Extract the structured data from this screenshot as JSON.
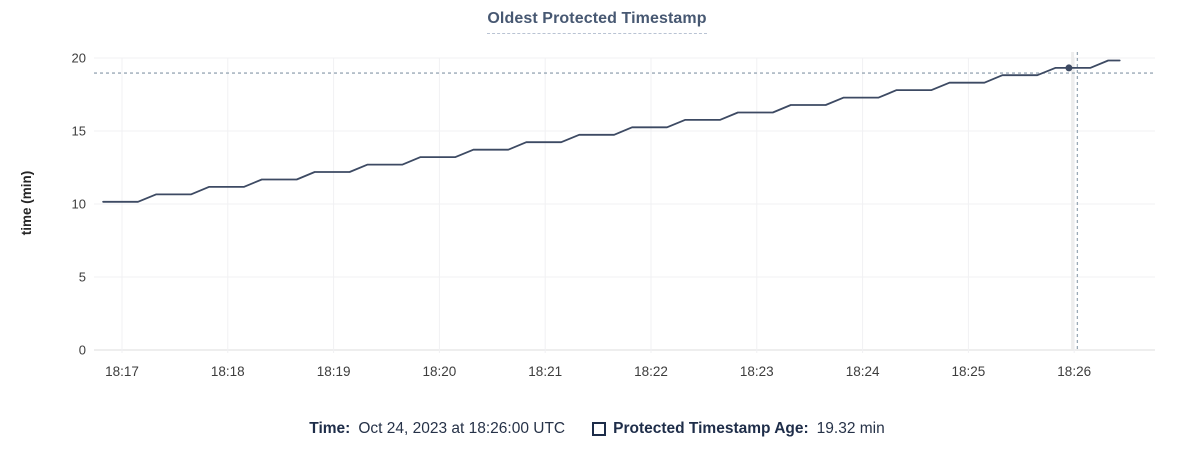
{
  "header": {
    "title": "Oldest Protected Timestamp"
  },
  "chart_data": {
    "type": "line",
    "title": "Oldest Protected Timestamp",
    "xlabel": "",
    "ylabel": "time (min)",
    "ylim": [
      0,
      20
    ],
    "y_ticks": [
      0,
      5,
      10,
      15,
      20
    ],
    "x_tick_labels": [
      "18:17",
      "18:18",
      "18:19",
      "18:20",
      "18:21",
      "18:22",
      "18:23",
      "18:24",
      "18:25",
      "18:26"
    ],
    "x_unit": "minutes offset from 18:17",
    "grid": true,
    "legend_position": "bottom",
    "series": [
      {
        "name": "Protected Timestamp Age",
        "color": "#3d4a63",
        "points": [
          [
            -0.179,
            10.15
          ],
          [
            0.151,
            10.15
          ],
          [
            0.321,
            10.66
          ],
          [
            0.651,
            10.66
          ],
          [
            0.821,
            11.17
          ],
          [
            1.151,
            11.17
          ],
          [
            1.321,
            11.68
          ],
          [
            1.651,
            11.68
          ],
          [
            1.821,
            12.19
          ],
          [
            2.151,
            12.19
          ],
          [
            2.321,
            12.7
          ],
          [
            2.651,
            12.7
          ],
          [
            2.821,
            13.21
          ],
          [
            3.151,
            13.21
          ],
          [
            3.321,
            13.72
          ],
          [
            3.651,
            13.72
          ],
          [
            3.821,
            14.23
          ],
          [
            4.151,
            14.23
          ],
          [
            4.321,
            14.74
          ],
          [
            4.651,
            14.74
          ],
          [
            4.821,
            15.25
          ],
          [
            5.151,
            15.25
          ],
          [
            5.321,
            15.76
          ],
          [
            5.651,
            15.76
          ],
          [
            5.821,
            16.27
          ],
          [
            6.151,
            16.27
          ],
          [
            6.321,
            16.78
          ],
          [
            6.651,
            16.78
          ],
          [
            6.821,
            17.29
          ],
          [
            7.151,
            17.29
          ],
          [
            7.321,
            17.8
          ],
          [
            7.651,
            17.8
          ],
          [
            7.821,
            18.31
          ],
          [
            8.151,
            18.31
          ],
          [
            8.321,
            18.82
          ],
          [
            8.651,
            18.82
          ],
          [
            8.821,
            19.32
          ],
          [
            9.151,
            19.32
          ],
          [
            9.321,
            19.83
          ],
          [
            9.43,
            19.83
          ]
        ]
      }
    ],
    "hover": {
      "dot_t": 8.95,
      "dot_value": 19.32,
      "crosshair_t": 9.03,
      "crosshair_value": 18.97,
      "guideline_t": 8.985,
      "time": "Oct 24, 2023 at 18:26:00 UTC",
      "value": "19.32 min"
    }
  },
  "tooltip": {
    "time_label": "Time:",
    "time_value": "Oct 24, 2023 at 18:26:00 UTC",
    "series_label": "Protected Timestamp Age:",
    "series_value": "19.32 min"
  },
  "colors": {
    "line": "#3d4a63",
    "dot": "#3d4a63",
    "crosshair": "#9aa9b6",
    "hover_guideline": "#ededed",
    "title": "#475872",
    "grid": "#f1f1f3",
    "axis_zero": "#dcdcde",
    "tick_text": "#3d3d3d",
    "legend_text": "#1e2d49"
  }
}
